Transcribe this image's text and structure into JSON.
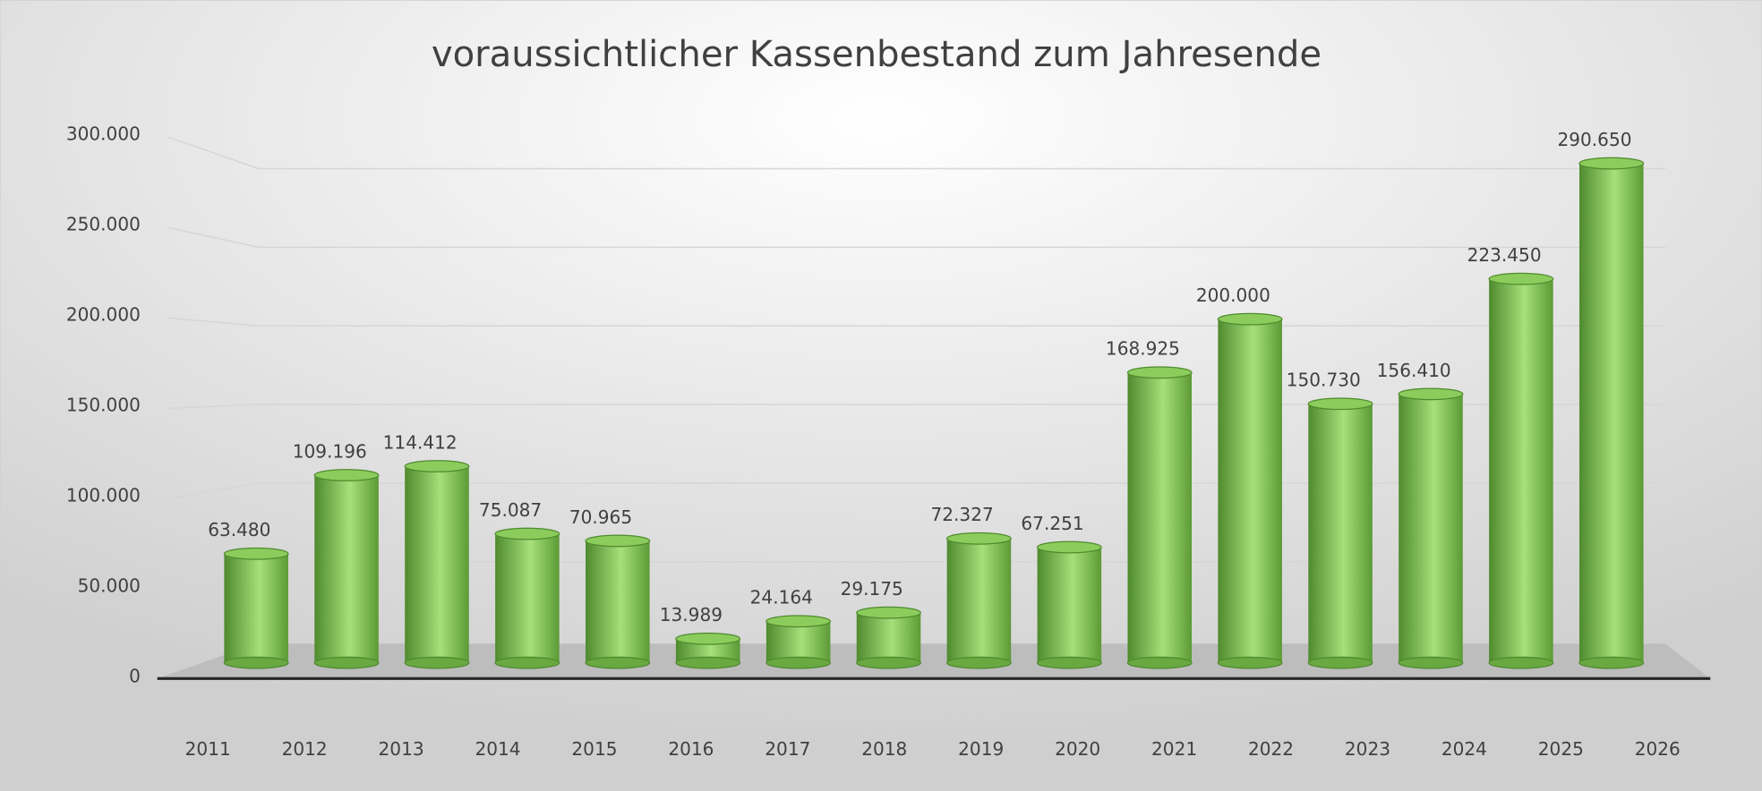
{
  "chart_data": {
    "type": "bar",
    "title": "voraussichtlicher Kassenbestand zum Jahresende",
    "categories": [
      "2011",
      "2012",
      "2013",
      "2014",
      "2015",
      "2016",
      "2017",
      "2018",
      "2019",
      "2020",
      "2021",
      "2022",
      "2023",
      "2024",
      "2025",
      "2026"
    ],
    "values": [
      63480,
      109196,
      114412,
      75087,
      70965,
      13989,
      24164,
      29175,
      72327,
      67251,
      168925,
      200000,
      150730,
      156410,
      223450,
      290650
    ],
    "value_labels": [
      "63.480",
      "109.196",
      "114.412",
      "75.087",
      "70.965",
      "13.989",
      "24.164",
      "29.175",
      "72.327",
      "67.251",
      "168.925",
      "200.000",
      "150.730",
      "156.410",
      "223.450",
      "290.650"
    ],
    "color": "#8ccc5c",
    "ylim": [
      0,
      300000
    ],
    "yticks": [
      0,
      {
        "value": 50000,
        "label": "50.000"
      },
      {
        "value": 100000,
        "label": "100.000"
      },
      {
        "value": 150000,
        "label": "150.000"
      },
      {
        "value": 200000,
        "label": "200.000"
      },
      {
        "value": 250000,
        "label": "250.000"
      },
      {
        "value": 300000,
        "label": "300.000"
      }
    ],
    "grid": true
  }
}
